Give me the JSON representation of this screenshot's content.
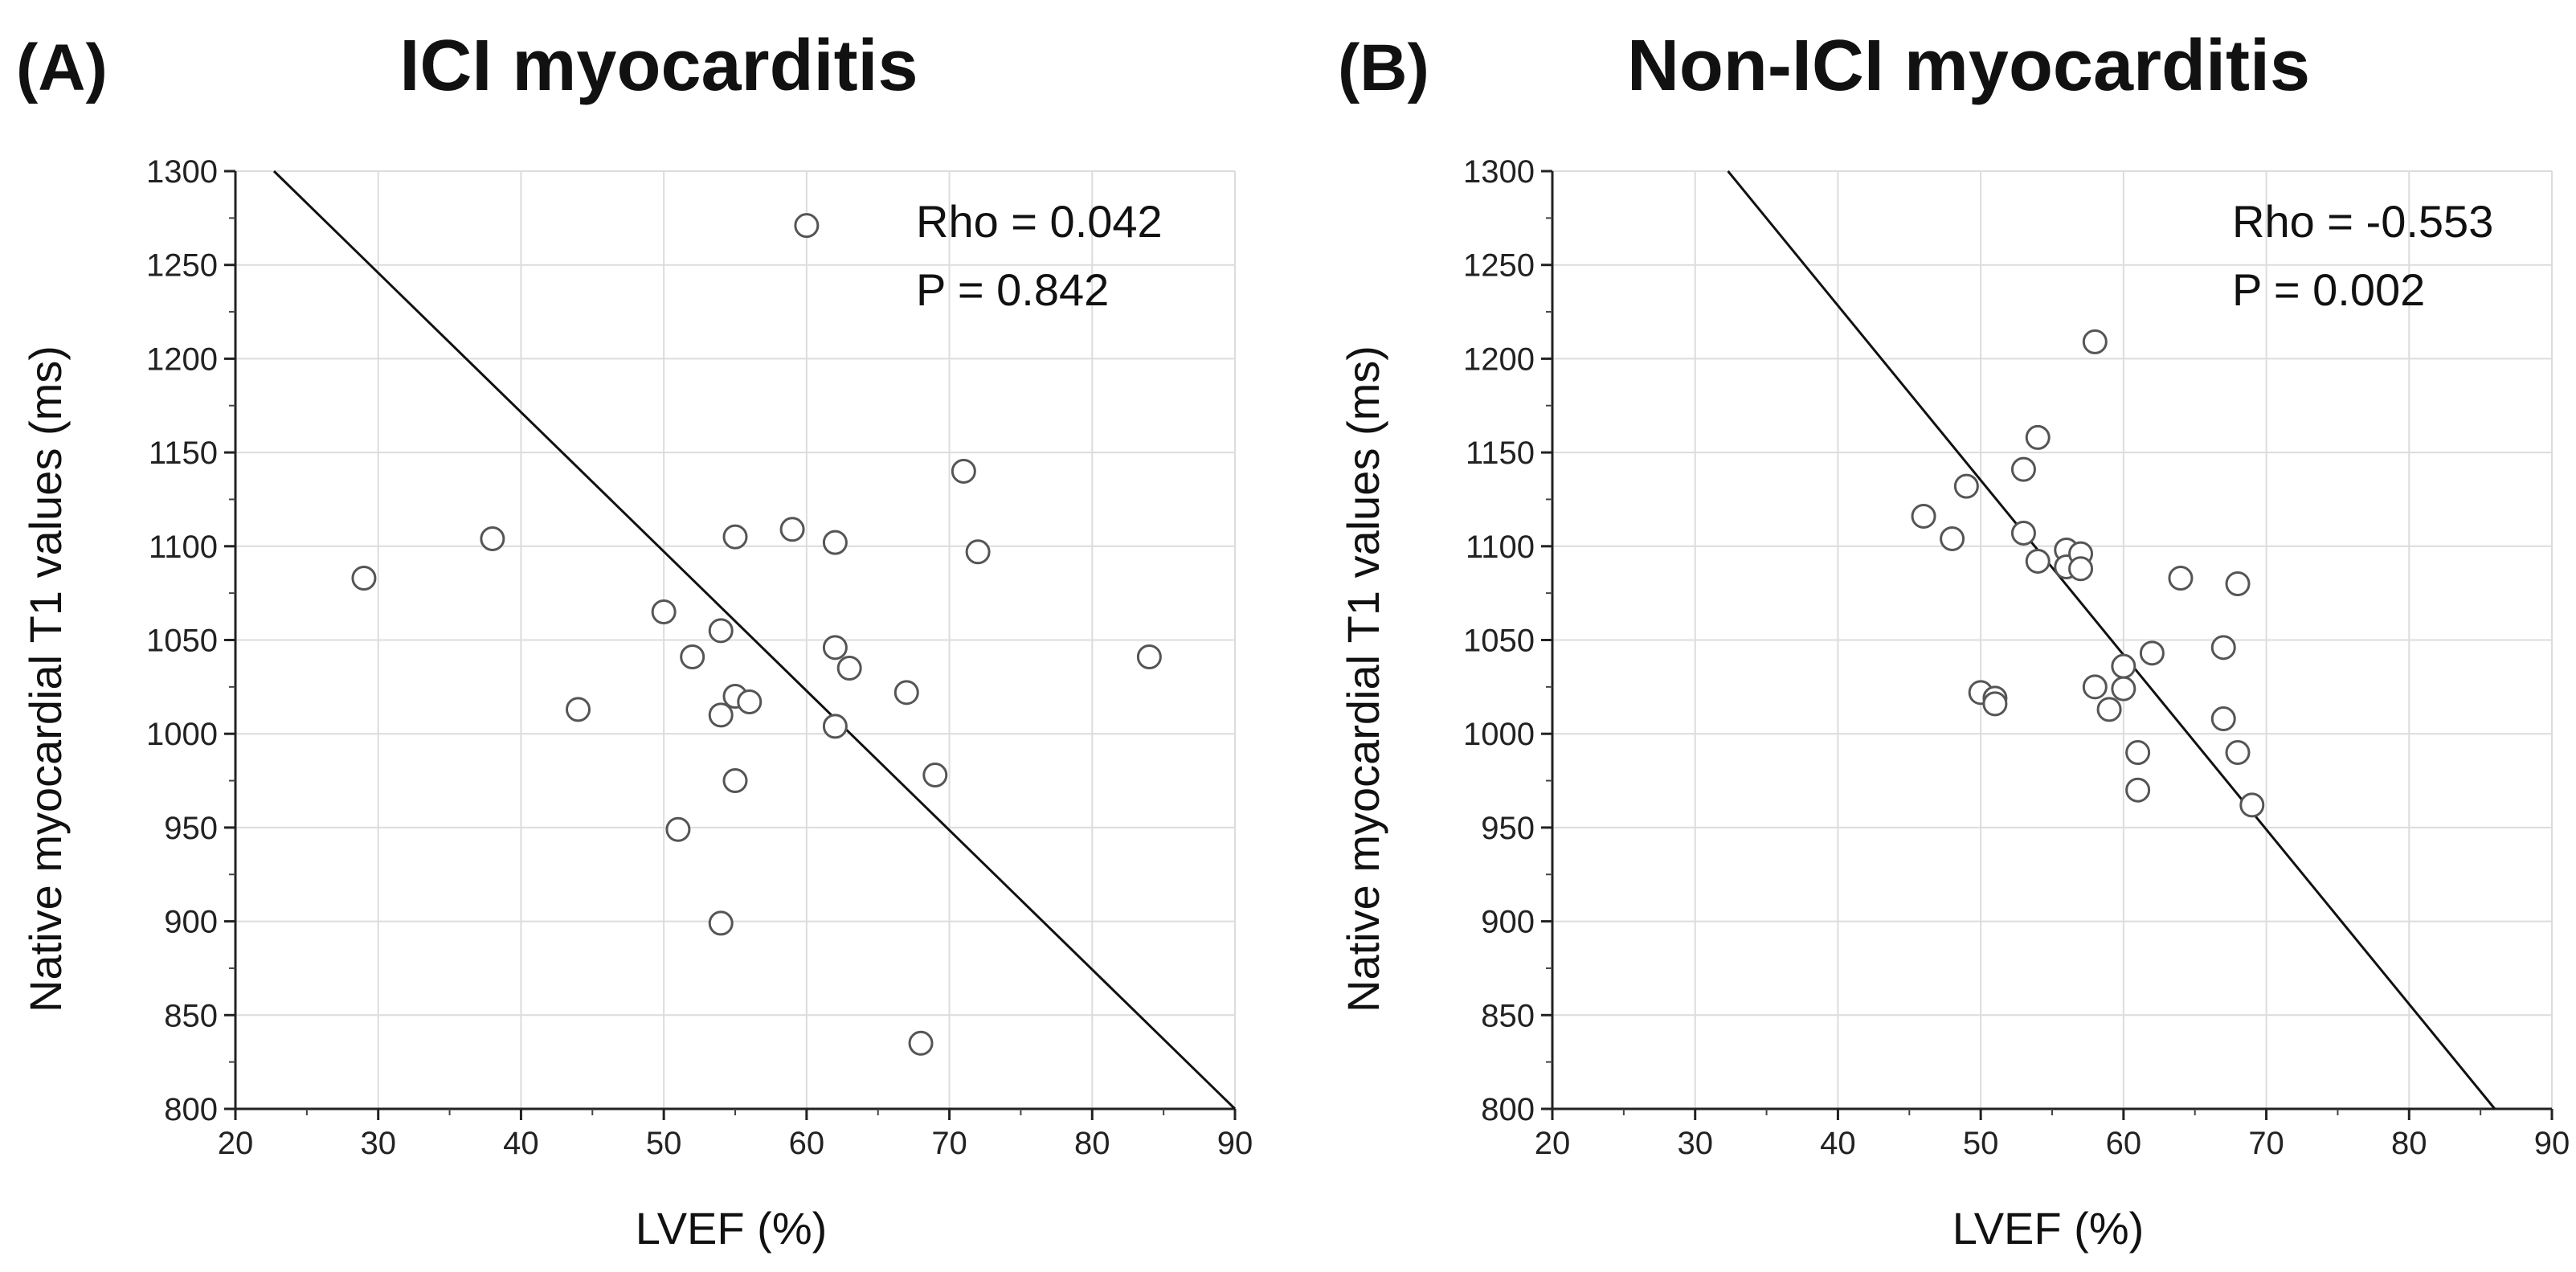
{
  "figure": {
    "accent_color": "#111111",
    "point_stroke_color": "#555555",
    "grid_color": "#dcdcdc"
  },
  "chart_data": [
    {
      "type": "scatter",
      "panel_label": "(A)",
      "title": "ICI myocarditis",
      "xlabel": "LVEF (%)",
      "ylabel": "Native myocardial T1 values (ms)",
      "xlim": [
        20,
        90
      ],
      "ylim": [
        800,
        1300
      ],
      "xticks": [
        20,
        30,
        40,
        50,
        60,
        70,
        80,
        90
      ],
      "yticks": [
        800,
        850,
        900,
        950,
        1000,
        1050,
        1100,
        1150,
        1200,
        1250,
        1300
      ],
      "grid": true,
      "rho_text": "Rho = 0.042",
      "p_text": "P =  0.842",
      "regression_line": [
        [
          22.7,
          1300
        ],
        [
          90,
          800
        ]
      ],
      "points": [
        {
          "x": 29,
          "y": 1083
        },
        {
          "x": 38,
          "y": 1104
        },
        {
          "x": 44,
          "y": 1013
        },
        {
          "x": 50,
          "y": 1065
        },
        {
          "x": 51,
          "y": 949
        },
        {
          "x": 52,
          "y": 1041
        },
        {
          "x": 54,
          "y": 1055
        },
        {
          "x": 54,
          "y": 1010
        },
        {
          "x": 54,
          "y": 899
        },
        {
          "x": 55,
          "y": 1105
        },
        {
          "x": 55,
          "y": 1020
        },
        {
          "x": 55,
          "y": 975
        },
        {
          "x": 56,
          "y": 1017
        },
        {
          "x": 59,
          "y": 1109
        },
        {
          "x": 60,
          "y": 1271
        },
        {
          "x": 62,
          "y": 1102
        },
        {
          "x": 62,
          "y": 1046
        },
        {
          "x": 62,
          "y": 1004
        },
        {
          "x": 63,
          "y": 1035
        },
        {
          "x": 67,
          "y": 1022
        },
        {
          "x": 68,
          "y": 835
        },
        {
          "x": 69,
          "y": 978
        },
        {
          "x": 71,
          "y": 1140
        },
        {
          "x": 72,
          "y": 1097
        },
        {
          "x": 84,
          "y": 1041
        }
      ]
    },
    {
      "type": "scatter",
      "panel_label": "(B)",
      "title": "Non-ICI myocarditis",
      "xlabel": "LVEF (%)",
      "ylabel": "Native myocardial T1 values (ms)",
      "xlim": [
        20,
        90
      ],
      "ylim": [
        800,
        1300
      ],
      "xticks": [
        20,
        30,
        40,
        50,
        60,
        70,
        80,
        90
      ],
      "yticks": [
        800,
        850,
        900,
        950,
        1000,
        1050,
        1100,
        1150,
        1200,
        1250,
        1300
      ],
      "grid": true,
      "rho_text": "Rho = -0.553",
      "p_text": "P =  0.002",
      "regression_line": [
        [
          32.3,
          1300
        ],
        [
          86,
          800
        ]
      ],
      "points": [
        {
          "x": 46,
          "y": 1116
        },
        {
          "x": 48,
          "y": 1104
        },
        {
          "x": 49,
          "y": 1132
        },
        {
          "x": 50,
          "y": 1022
        },
        {
          "x": 51,
          "y": 1019
        },
        {
          "x": 51,
          "y": 1016
        },
        {
          "x": 53,
          "y": 1141
        },
        {
          "x": 53,
          "y": 1107
        },
        {
          "x": 54,
          "y": 1158
        },
        {
          "x": 54,
          "y": 1092
        },
        {
          "x": 56,
          "y": 1098
        },
        {
          "x": 56,
          "y": 1089
        },
        {
          "x": 57,
          "y": 1096
        },
        {
          "x": 57,
          "y": 1088
        },
        {
          "x": 58,
          "y": 1209
        },
        {
          "x": 58,
          "y": 1025
        },
        {
          "x": 59,
          "y": 1013
        },
        {
          "x": 60,
          "y": 1036
        },
        {
          "x": 60,
          "y": 1024
        },
        {
          "x": 61,
          "y": 990
        },
        {
          "x": 61,
          "y": 970
        },
        {
          "x": 62,
          "y": 1043
        },
        {
          "x": 64,
          "y": 1083
        },
        {
          "x": 67,
          "y": 1046
        },
        {
          "x": 67,
          "y": 1008
        },
        {
          "x": 68,
          "y": 1080
        },
        {
          "x": 68,
          "y": 990
        },
        {
          "x": 69,
          "y": 962
        }
      ]
    }
  ]
}
